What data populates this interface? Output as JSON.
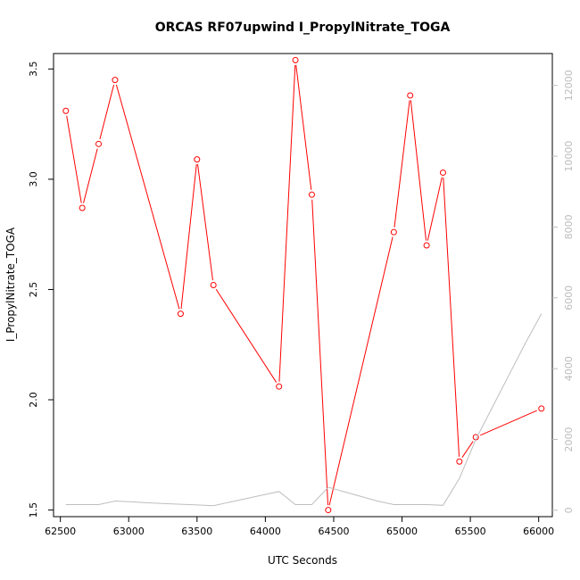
{
  "chart_data": {
    "type": "line",
    "title": "ORCAS RF07upwind I_PropylNitrate_TOGA",
    "xlabel": "UTC Seconds",
    "ylabel": "I_PropylNitrate_TOGA",
    "xlim": [
      62450,
      66100
    ],
    "ylim": [
      1.47,
      3.57
    ],
    "y2lim": [
      -180,
      12900
    ],
    "xticks": [
      62500,
      63000,
      63500,
      64000,
      64500,
      65000,
      65500,
      66000
    ],
    "yticks": [
      1.5,
      2.0,
      2.5,
      3.0,
      3.5
    ],
    "y2ticks": [
      0,
      2000,
      4000,
      6000,
      8000,
      10000,
      12000
    ],
    "grid": false,
    "series": [
      {
        "color": "#ff0000",
        "marker": "circle",
        "axis": "left",
        "x": [
          62540,
          62660,
          62780,
          62900,
          63380,
          63500,
          63620,
          64100,
          64220,
          64340,
          64460,
          64940,
          65060,
          65180,
          65300,
          65420,
          65540,
          66020
        ],
        "values": [
          3.31,
          2.87,
          3.16,
          3.45,
          2.39,
          3.09,
          2.52,
          2.06,
          3.54,
          2.93,
          1.5,
          2.76,
          3.38,
          2.7,
          3.03,
          1.72,
          1.83,
          1.96
        ]
      },
      {
        "color": "#bebebe",
        "marker": "none",
        "axis": "right",
        "x": [
          62540,
          62660,
          62780,
          62900,
          63020,
          63140,
          63260,
          63380,
          63500,
          63620,
          63740,
          63860,
          63980,
          64100,
          64220,
          64340,
          64460,
          64580,
          64700,
          64820,
          64940,
          65060,
          65180,
          65300,
          65420,
          65540,
          65660,
          65780,
          65900,
          66020
        ],
        "values": [
          160,
          160,
          160,
          260,
          240,
          210,
          190,
          170,
          150,
          130,
          230,
          330,
          430,
          530,
          160,
          160,
          650,
          520,
          390,
          260,
          160,
          160,
          160,
          140,
          900,
          2000,
          2900,
          3800,
          4700,
          5550
        ]
      }
    ]
  }
}
